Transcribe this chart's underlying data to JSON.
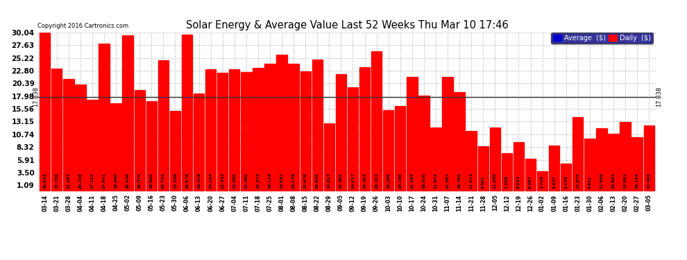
{
  "title": "Solar Energy & Average Value Last 52 Weeks Thu Mar 10 17:46",
  "copyright": "Copyright 2016 Cartronics.com",
  "average_line": 17.838,
  "average_label": "17.838",
  "bar_color": "#FF0000",
  "background_color": "#ffffff",
  "plot_bg_color": "#ffffff",
  "grid_color": "#aaaaaa",
  "yticks": [
    1.09,
    3.5,
    5.91,
    8.32,
    10.74,
    13.15,
    15.56,
    17.98,
    20.39,
    22.8,
    25.22,
    27.63,
    30.04
  ],
  "ymin": 0,
  "ymax": 30.04,
  "legend_avg_color": "#0000CC",
  "legend_daily_color": "#FF0000",
  "categories": [
    "03-14",
    "03-21",
    "03-28",
    "04-04",
    "04-11",
    "04-18",
    "04-25",
    "05-02",
    "05-09",
    "05-16",
    "05-23",
    "05-30",
    "06-06",
    "06-13",
    "06-20",
    "06-27",
    "07-04",
    "07-11",
    "07-18",
    "07-25",
    "08-01",
    "08-08",
    "08-15",
    "08-22",
    "08-29",
    "09-05",
    "09-12",
    "09-19",
    "09-26",
    "10-03",
    "10-10",
    "10-17",
    "10-24",
    "10-31",
    "11-07",
    "11-14",
    "11-21",
    "11-28",
    "12-05",
    "12-12",
    "12-19",
    "12-26",
    "01-02",
    "01-09",
    "01-16",
    "01-23",
    "01-30",
    "02-06",
    "02-13",
    "02-20",
    "02-27",
    "03-05"
  ],
  "values": [
    30.943,
    23.15,
    21.287,
    20.228,
    17.222,
    27.971,
    16.68,
    29.456,
    19.075,
    16.999,
    24.732,
    15.239,
    29.679,
    18.418,
    23.124,
    22.343,
    23.089,
    22.49,
    23.372,
    24.114,
    25.852,
    24.178,
    22.679,
    24.958,
    12.817,
    22.095,
    19.617,
    23.492,
    26.422,
    15.299,
    16.15,
    21.585,
    18.02,
    11.973,
    21.597,
    18.795,
    11.413,
    8.501,
    11.969,
    7.208,
    9.244,
    6.067,
    3.718,
    8.647,
    5.145,
    13.975,
    9.912,
    11.938,
    10.803,
    13.081,
    10.154,
    12.492
  ]
}
